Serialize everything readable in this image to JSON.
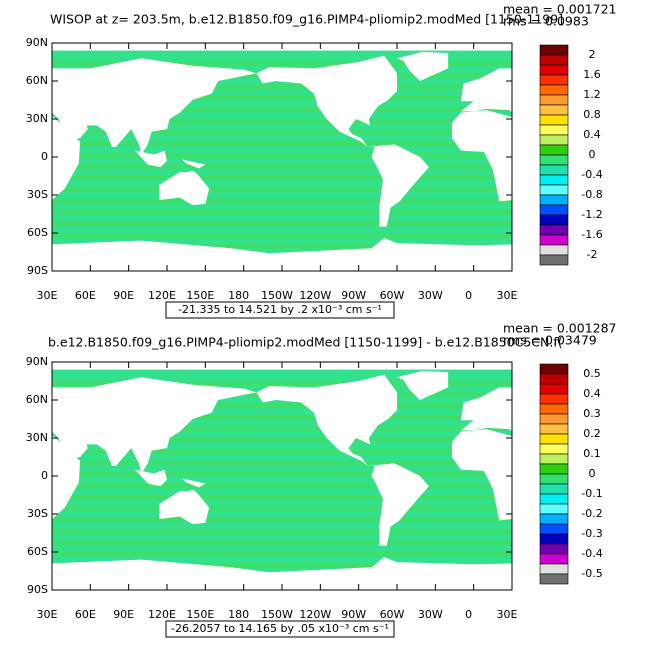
{
  "panels": [
    {
      "title": "WISOP at z= 203.5m, b.e12.B1850.f09_g16.PIMP4-pliomip2.modMed [1150-1199]",
      "mean": "mean = 0.001721",
      "rms": "rms = 0.0983",
      "range": "-21.335 to 14.521 by .2 x10⁻³ cm s⁻¹",
      "colorbar": [
        "2",
        "1.6",
        "1.2",
        "0.8",
        "0.4",
        "0",
        "-0.4",
        "-0.8",
        "-1.2",
        "-1.6",
        "-2"
      ]
    },
    {
      "title": "b.e12.B1850.f09_g16.PIMP4-pliomip2.modMed [1150-1199] - b.e12.B1850C5CN.f(",
      "mean": "mean = 0.001287",
      "rms": "rms = 0.03479",
      "range": "-26.2057 to 14.165 by .05 x10⁻³ cm s⁻¹",
      "colorbar": [
        "0.5",
        "0.4",
        "0.3",
        "0.2",
        "0.1",
        "0",
        "-0.1",
        "-0.2",
        "-0.3",
        "-0.4",
        "-0.5"
      ]
    }
  ],
  "yticks": [
    "90N",
    "60N",
    "30N",
    "0",
    "30S",
    "60S",
    "90S"
  ],
  "xticks": [
    "30E",
    "60E",
    "90E",
    "120E",
    "150E",
    "180",
    "150W",
    "120W",
    "90W",
    "60W",
    "30W",
    "0",
    "30E"
  ]
}
